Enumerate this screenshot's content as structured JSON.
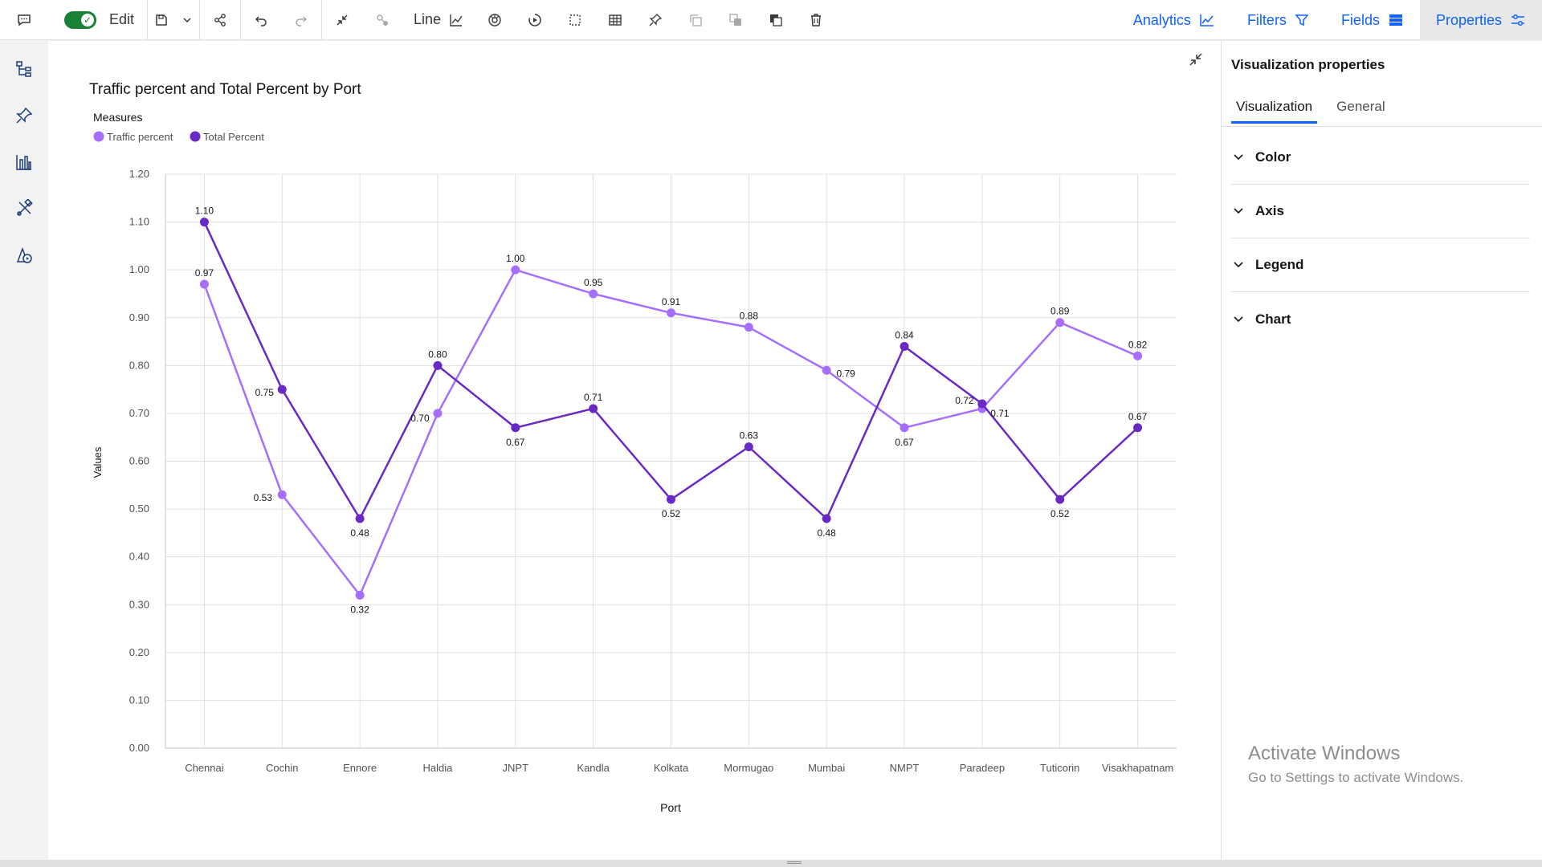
{
  "toolbar": {
    "edit_label": "Edit",
    "chart_type_label": "Line"
  },
  "right_tabs": {
    "analytics": "Analytics",
    "filters": "Filters",
    "fields": "Fields",
    "properties": "Properties"
  },
  "properties_panel": {
    "title": "Visualization properties",
    "tabs": [
      "Visualization",
      "General"
    ],
    "sections": [
      "Color",
      "Axis",
      "Legend",
      "Chart"
    ]
  },
  "watermark": {
    "line1": "Activate Windows",
    "line2": "Go to Settings to activate Windows."
  },
  "colors": {
    "traffic": "#a56eff",
    "total": "#6929c4",
    "accent": "#0f62fe"
  },
  "chart_data": {
    "type": "line",
    "title": "Traffic percent and Total Percent by Port",
    "legend_title": "Measures",
    "legend_placement": "top-left",
    "xlabel": "Port",
    "ylabel": "Values",
    "ylim": [
      0,
      1.2
    ],
    "yticks": [
      "0.00",
      "0.10",
      "0.20",
      "0.30",
      "0.40",
      "0.50",
      "0.60",
      "0.70",
      "0.80",
      "0.90",
      "1.00",
      "1.10",
      "1.20"
    ],
    "grid": true,
    "categories": [
      "Chennai",
      "Cochin",
      "Ennore",
      "Haldia",
      "JNPT",
      "Kandla",
      "Kolkata",
      "Mormugao",
      "Mumbai",
      "NMPT",
      "Paradeep",
      "Tuticorin",
      "Visakhapatnam"
    ],
    "series": [
      {
        "name": "Traffic percent",
        "color": "#a56eff",
        "values": [
          0.97,
          0.53,
          0.32,
          0.7,
          1.0,
          0.95,
          0.91,
          0.88,
          0.79,
          0.67,
          0.71,
          0.89,
          0.82
        ],
        "labels": [
          "0.97",
          "0.53",
          "0.32",
          "0.70",
          "1.00",
          "0.95",
          "0.91",
          "0.88",
          "0.79",
          "0.67",
          "0.71",
          "0.89",
          "0.82"
        ]
      },
      {
        "name": "Total Percent",
        "color": "#6929c4",
        "values": [
          1.1,
          0.75,
          0.48,
          0.8,
          0.67,
          0.71,
          0.52,
          0.63,
          0.48,
          0.84,
          0.72,
          0.52,
          0.67
        ],
        "labels": [
          "1.10",
          "0.75",
          "0.48",
          "0.80",
          "0.67",
          "0.71",
          "0.52",
          "0.63",
          "0.48",
          "0.84",
          "0.72",
          "0.52",
          "0.67"
        ]
      }
    ]
  }
}
